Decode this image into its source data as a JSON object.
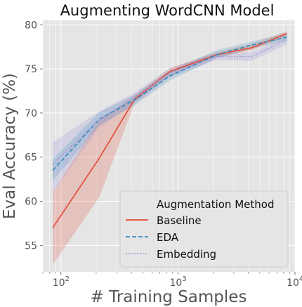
{
  "chart_data": {
    "type": "line",
    "title": "Augmenting WordCNN Model",
    "xlabel": "# Training Samples",
    "ylabel": "Eval Accuracy (%)",
    "xscale": "log",
    "xlim": [
      70,
      10000
    ],
    "ylim": [
      52,
      80.5
    ],
    "x_ticks": [
      {
        "value": 100,
        "label": "10",
        "exp": "2"
      },
      {
        "value": 1000,
        "label": "10",
        "exp": "3"
      },
      {
        "value": 10000,
        "label": "10",
        "exp": "4"
      }
    ],
    "y_ticks": [
      55,
      60,
      65,
      70,
      75,
      80
    ],
    "grid": true,
    "legend": {
      "title": "Augmentation Method",
      "position": "lower-right"
    },
    "x": [
      85,
      213,
      427,
      853,
      2134,
      4268,
      8536
    ],
    "series": [
      {
        "name": "Baseline",
        "color": "#e24a33",
        "style": "solid",
        "values": [
          57.0,
          64.9,
          71.6,
          74.7,
          76.6,
          77.4,
          79.0
        ],
        "lower": [
          52.8,
          60.5,
          71.2,
          74.3,
          76.3,
          77.1,
          78.7
        ],
        "upper": [
          61.0,
          69.3,
          72.0,
          75.1,
          76.9,
          77.8,
          79.3
        ]
      },
      {
        "name": "EDA",
        "color": "#348abd",
        "style": "dashed",
        "values": [
          63.5,
          69.3,
          71.5,
          74.2,
          76.6,
          77.7,
          78.6
        ],
        "lower": [
          62.3,
          68.6,
          70.9,
          73.7,
          76.2,
          77.3,
          78.2
        ],
        "upper": [
          64.8,
          70.1,
          72.1,
          74.8,
          77.1,
          78.1,
          79.1
        ]
      },
      {
        "name": "Embedding",
        "color": "#988ed5",
        "style": "dotted",
        "values": [
          64.2,
          69.3,
          71.7,
          74.6,
          76.4,
          76.4,
          78.3
        ],
        "lower": [
          61.0,
          68.4,
          71.1,
          74.1,
          76.0,
          75.9,
          77.8
        ],
        "upper": [
          66.7,
          70.2,
          72.3,
          75.1,
          76.8,
          76.9,
          78.7
        ]
      }
    ]
  }
}
